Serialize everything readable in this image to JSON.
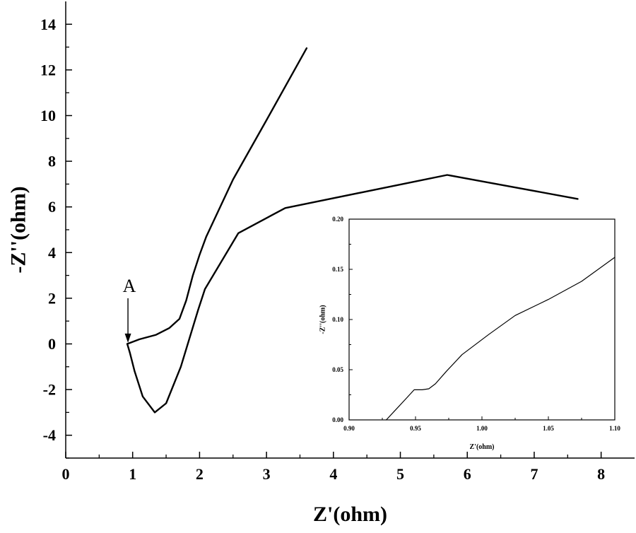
{
  "chart_data": [
    {
      "type": "line",
      "title": "",
      "xlabel": "Z'(ohm)",
      "ylabel": "-Z''(ohm)",
      "xlim": [
        0,
        8.5
      ],
      "ylim": [
        -5,
        15
      ],
      "x_major_ticks": [
        0,
        1,
        2,
        3,
        4,
        5,
        6,
        7,
        8
      ],
      "x_tick_labels": [
        "0",
        "1",
        "2",
        "3",
        "4",
        "5",
        "6",
        "7",
        "8"
      ],
      "y_major_ticks": [
        -4,
        -2,
        0,
        2,
        4,
        6,
        8,
        10,
        12,
        14
      ],
      "y_tick_labels": [
        "-4",
        "-2",
        "0",
        "2",
        "4",
        "6",
        "8",
        "10",
        "12",
        "14"
      ],
      "grid": false,
      "series": [
        {
          "x": [
            0.92,
            0.96,
            1.03,
            1.15,
            1.33,
            1.5,
            1.72,
            1.98,
            2.08,
            2.58,
            3.28,
            5.7,
            7.65
          ],
          "y": [
            0.0,
            -0.4,
            -1.2,
            -2.3,
            -3.0,
            -2.6,
            -1.0,
            1.5,
            2.4,
            4.85,
            5.95,
            7.4,
            6.35
          ]
        },
        {
          "x": [
            0.92,
            1.1,
            1.35,
            1.55,
            1.7,
            1.8,
            1.9,
            2.0,
            2.1,
            2.5,
            3.0,
            3.6
          ],
          "y": [
            0.0,
            0.2,
            0.4,
            0.7,
            1.1,
            1.9,
            3.0,
            3.9,
            4.7,
            7.2,
            9.8,
            12.95
          ]
        }
      ],
      "annotations": [
        {
          "text": "A",
          "arrow_from": [
            0.93,
            2.0
          ],
          "arrow_to": [
            0.93,
            0.05
          ]
        }
      ]
    },
    {
      "type": "line",
      "title": "",
      "xlabel": "Z'(ohm)",
      "ylabel": "-Z''(ohm)",
      "xlim": [
        0.9,
        1.1
      ],
      "ylim": [
        0.0,
        0.2
      ],
      "x_major_ticks": [
        0.9,
        0.95,
        1.0,
        1.05,
        1.1
      ],
      "x_tick_labels": [
        "0.90",
        "0.95",
        "1.00",
        "1.05",
        "1.10"
      ],
      "y_major_ticks": [
        0.0,
        0.05,
        0.1,
        0.15,
        0.2
      ],
      "y_tick_labels": [
        "0.00",
        "0.05",
        "0.10",
        "0.15",
        "0.20"
      ],
      "grid": false,
      "series": [
        {
          "x": [
            0.928,
            0.935,
            0.942,
            0.949,
            0.955,
            0.96,
            0.965,
            0.973,
            0.985,
            1.005,
            1.025,
            1.05,
            1.075,
            1.1
          ],
          "y": [
            0.0,
            0.01,
            0.02,
            0.03,
            0.03,
            0.031,
            0.036,
            0.048,
            0.065,
            0.085,
            0.104,
            0.12,
            0.138,
            0.162
          ]
        }
      ]
    }
  ]
}
